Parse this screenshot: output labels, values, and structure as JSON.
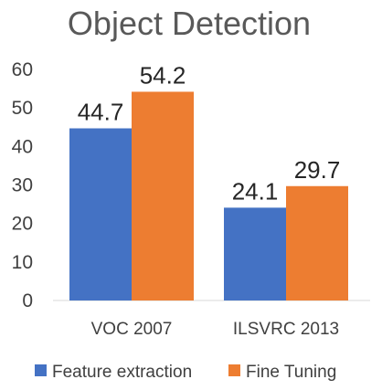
{
  "chart_data": {
    "type": "bar",
    "title": "Object Detection",
    "categories": [
      "VOC 2007",
      "ILSVRC 2013"
    ],
    "series": [
      {
        "name": "Feature extraction",
        "values": [
          44.7,
          24.1
        ],
        "color": "#4472C4"
      },
      {
        "name": "Fine Tuning",
        "values": [
          54.2,
          29.7
        ],
        "color": "#ED7D31"
      }
    ],
    "ylim": [
      0,
      60
    ],
    "yticks": [
      0,
      10,
      20,
      30,
      40,
      50,
      60
    ],
    "grid": false,
    "legend_position": "bottom",
    "data_labels": [
      "44.7",
      "24.1",
      "54.2",
      "29.7"
    ]
  }
}
